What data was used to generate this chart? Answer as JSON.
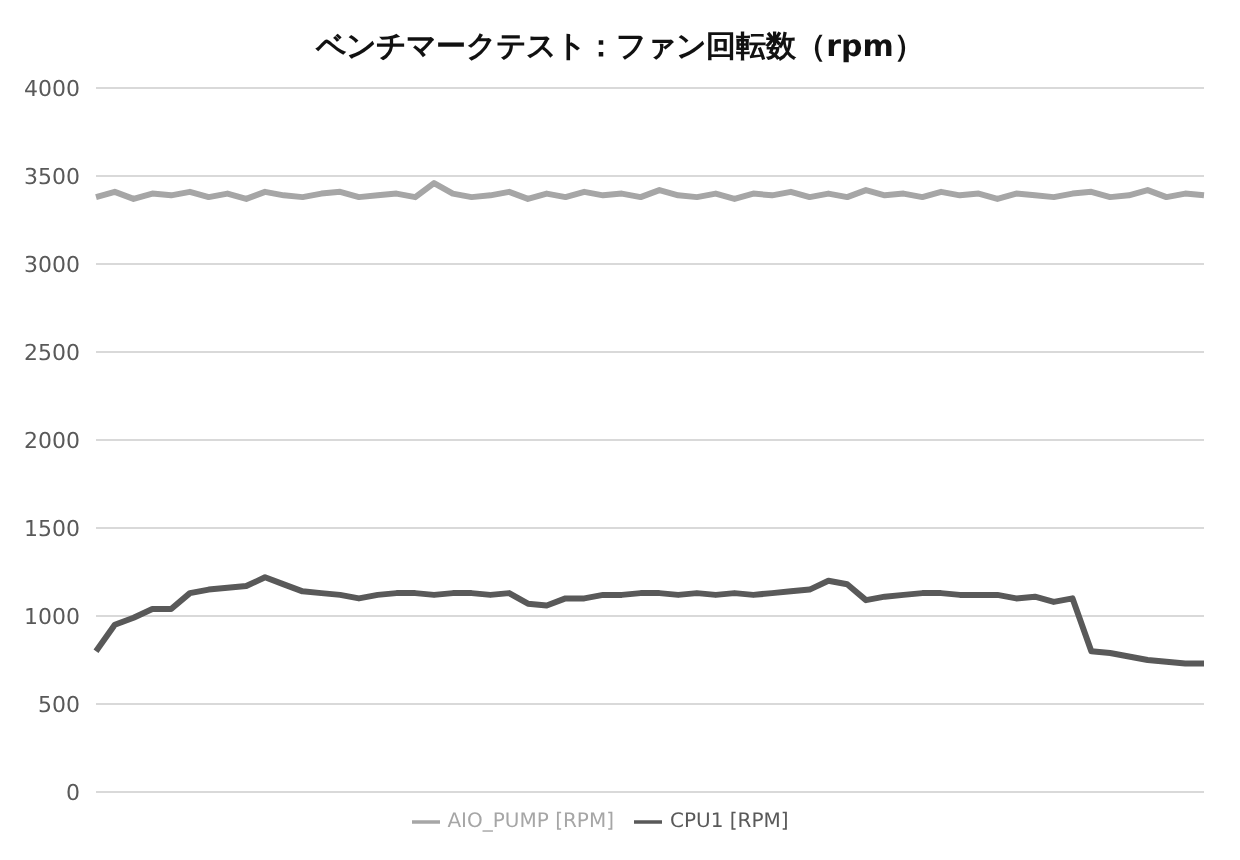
{
  "chart_data": {
    "type": "line",
    "title": "ベンチマークテスト：ファン回転数（rpm）",
    "categories": [
      null,
      null,
      null,
      null,
      null,
      null,
      null,
      null,
      null,
      null,
      null,
      null,
      null,
      null,
      null,
      null,
      null,
      null,
      null,
      null,
      null,
      null,
      null,
      null,
      null,
      null,
      null,
      null,
      null,
      null,
      null,
      null,
      null,
      null,
      null,
      null,
      null,
      null,
      null,
      null,
      null,
      null,
      null,
      null,
      null,
      null,
      null,
      null,
      null,
      null,
      null,
      null,
      null,
      null,
      null,
      null,
      null,
      null,
      null,
      null
    ],
    "series": [
      {
        "name": "CPU1 [RPM]",
        "color": "#595959",
        "values": [
          800,
          950,
          990,
          1040,
          1040,
          1130,
          1150,
          1160,
          1170,
          1220,
          1180,
          1140,
          1130,
          1120,
          1100,
          1120,
          1130,
          1130,
          1120,
          1130,
          1130,
          1120,
          1130,
          1070,
          1060,
          1100,
          1100,
          1120,
          1120,
          1130,
          1130,
          1120,
          1130,
          1120,
          1130,
          1120,
          1130,
          1140,
          1150,
          1200,
          1180,
          1090,
          1110,
          1120,
          1130,
          1130,
          1120,
          1120,
          1120,
          1100,
          1110,
          1080,
          1100,
          800,
          790,
          770,
          750,
          740,
          730,
          730
        ]
      },
      {
        "name": "AIO_PUMP [RPM]",
        "color": "#a6a6a6",
        "values": [
          3380,
          3410,
          3370,
          3400,
          3390,
          3410,
          3380,
          3400,
          3370,
          3410,
          3390,
          3380,
          3400,
          3410,
          3380,
          3390,
          3400,
          3380,
          3460,
          3400,
          3380,
          3390,
          3410,
          3370,
          3400,
          3380,
          3410,
          3390,
          3400,
          3380,
          3420,
          3390,
          3380,
          3400,
          3370,
          3400,
          3390,
          3410,
          3380,
          3400,
          3380,
          3420,
          3390,
          3400,
          3380,
          3410,
          3390,
          3400,
          3370,
          3400,
          3390,
          3380,
          3400,
          3410,
          3380,
          3390,
          3420,
          3380,
          3400,
          3390
        ]
      }
    ],
    "ylim": [
      0,
      4000
    ],
    "yticks": [
      0,
      500,
      1000,
      1500,
      2000,
      2500,
      3000,
      3500,
      4000
    ],
    "grid": "y",
    "legend": "bottom",
    "marker": "none",
    "line_style": "solid"
  }
}
